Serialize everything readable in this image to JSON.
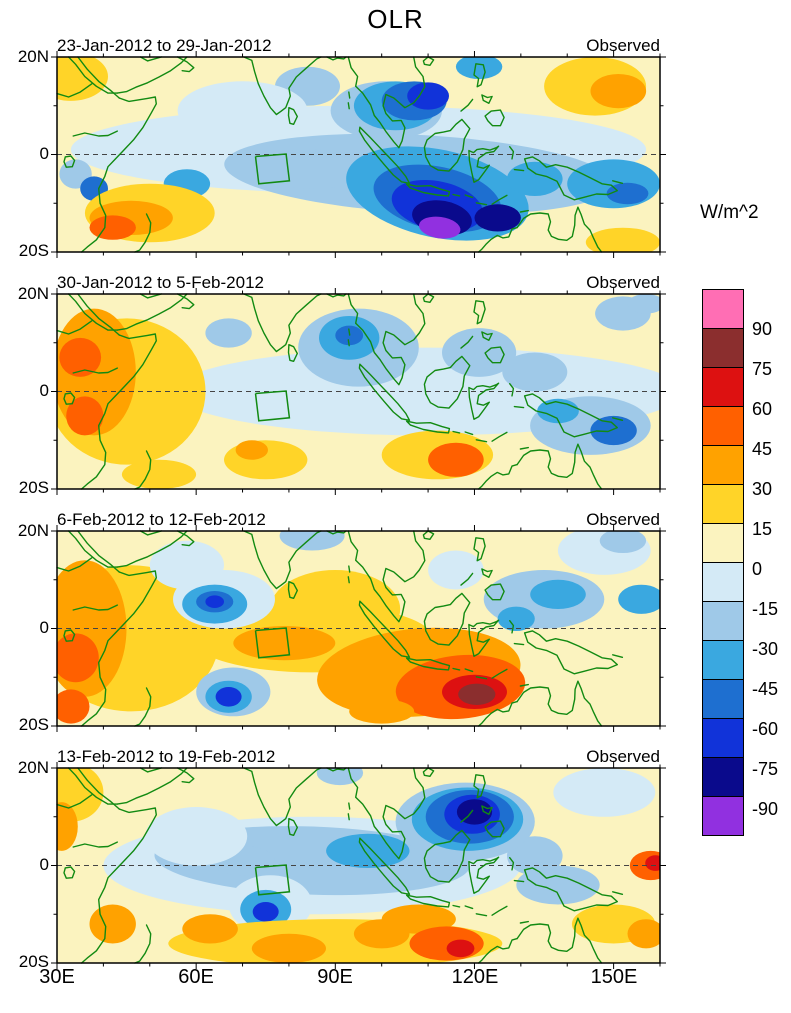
{
  "title": "OLR",
  "colorbar": {
    "label": "W/m^2",
    "tick_labels": [
      "90",
      "75",
      "60",
      "45",
      "30",
      "15",
      "0",
      "-15",
      "-30",
      "-45",
      "-60",
      "-75",
      "-90"
    ],
    "cell_colors_top_to_bottom": [
      "#FF6EB4",
      "#8B2E2E",
      "#DD1111",
      "#FF6000",
      "#FFA200",
      "#FFD428",
      "#FBF3BF",
      "#D4EAF6",
      "#9FC9E8",
      "#3AA8E0",
      "#1E6FD0",
      "#1133D9",
      "#0A0A8C",
      "#9130E0"
    ]
  },
  "xaxis": {
    "tick_labels": [
      "30E",
      "60E",
      "90E",
      "120E",
      "150E"
    ]
  },
  "yaxis": {
    "tick_labels": [
      "20N",
      "0",
      "20S"
    ]
  },
  "panels": [
    {
      "title": "23-Jan-2012 to 29-Jan-2012",
      "tag": "Observed"
    },
    {
      "title": "30-Jan-2012 to 5-Feb-2012",
      "tag": "Observed"
    },
    {
      "title": "6-Feb-2012 to 12-Feb-2012",
      "tag": "Observed"
    },
    {
      "title": "13-Feb-2012 to 19-Feb-2012",
      "tag": "Observed"
    }
  ],
  "chart_data": {
    "type": "heatmap",
    "subtype": "filled_contour_anomaly_maps",
    "units": "W/m^2",
    "lon_range": [
      30,
      160
    ],
    "lat_range": [
      -20,
      20
    ],
    "contour_levels": [
      -90,
      -75,
      -60,
      -45,
      -30,
      -15,
      0,
      15,
      30,
      45,
      60,
      75,
      90
    ],
    "background_band_value": 7,
    "feature_format": "[lon_deg_E, lat_deg_N, rx_deg, ry_deg, anomaly_value_W_m2, rot_deg_optional]",
    "region_box_lonlat": [
      [
        72.8,
        -0.4
      ],
      [
        79.4,
        0.1
      ],
      [
        80.1,
        -5.4
      ],
      [
        73.5,
        -6
      ],
      [
        72.8,
        -0.4
      ]
    ],
    "panels": [
      {
        "title": "23-Jan-2012 to 29-Jan-2012",
        "source": "Observed",
        "features": [
          [
            95,
            1,
            62,
            9,
            -10
          ],
          [
            84,
            14,
            7,
            4,
            -20
          ],
          [
            70,
            9,
            14,
            6,
            -10
          ],
          [
            108,
            -4,
            42,
            8,
            -20,
            3
          ],
          [
            85,
            -3,
            13,
            4,
            -25
          ],
          [
            58,
            -6,
            5,
            3,
            -35
          ],
          [
            34,
            -4,
            3.5,
            3,
            -30
          ],
          [
            38,
            -7,
            3,
            2.5,
            -50
          ],
          [
            101,
            9,
            12,
            6,
            -20
          ],
          [
            103,
            10,
            9,
            5,
            -35
          ],
          [
            107,
            11,
            7,
            4,
            -55
          ],
          [
            110,
            12,
            4.5,
            2.8,
            -70
          ],
          [
            121,
            18,
            5,
            2.5,
            -35
          ],
          [
            112,
            -8,
            20,
            9,
            -35,
            12
          ],
          [
            112,
            -9,
            14,
            6.5,
            -50,
            12
          ],
          [
            112,
            -10.5,
            10,
            5,
            -70,
            12
          ],
          [
            113,
            -13,
            6.5,
            3.5,
            -85,
            10
          ],
          [
            112.5,
            -15,
            4.5,
            2.2,
            -95,
            8
          ],
          [
            125,
            -13,
            5,
            2.8,
            -80
          ],
          [
            133,
            -5,
            6,
            3.5,
            -45
          ],
          [
            150,
            -6,
            10,
            5,
            -35
          ],
          [
            153,
            -8,
            4.5,
            2.2,
            -60
          ],
          [
            33,
            16,
            8,
            5,
            25
          ],
          [
            50,
            -12,
            14,
            6,
            20
          ],
          [
            46,
            -13,
            9,
            3.5,
            35
          ],
          [
            42,
            -15,
            5,
            2.5,
            50
          ],
          [
            146,
            14,
            11,
            6,
            25
          ],
          [
            151,
            13,
            6,
            3.5,
            40
          ],
          [
            152,
            -18,
            8,
            3,
            20
          ]
        ]
      },
      {
        "title": "30-Jan-2012 to 5-Feb-2012",
        "source": "Observed",
        "features": [
          [
            110,
            0,
            55,
            9,
            -10
          ],
          [
            95,
            9,
            13,
            8,
            -25
          ],
          [
            93,
            11,
            6.5,
            4.5,
            -45
          ],
          [
            93,
            11.5,
            3,
            2,
            -55
          ],
          [
            67,
            12,
            5,
            3,
            -20
          ],
          [
            121,
            8,
            8,
            5,
            -25
          ],
          [
            133,
            4,
            7,
            4,
            -20
          ],
          [
            145,
            -7,
            13,
            6,
            -30
          ],
          [
            150,
            -8,
            5,
            3,
            -55
          ],
          [
            138,
            -4,
            4.5,
            2.5,
            -45
          ],
          [
            152,
            16,
            6,
            3.5,
            -25
          ],
          [
            157,
            18,
            4,
            2,
            -20
          ],
          [
            45,
            0,
            17,
            15,
            20
          ],
          [
            38,
            4,
            9,
            13,
            35
          ],
          [
            35,
            7,
            4.5,
            4,
            50
          ],
          [
            36,
            -5,
            4,
            4,
            50
          ],
          [
            52,
            -17,
            8,
            3,
            20
          ],
          [
            112,
            -13,
            12,
            5,
            25
          ],
          [
            116,
            -14,
            6,
            3.5,
            45
          ],
          [
            75,
            -14,
            9,
            4,
            20
          ],
          [
            72,
            -12,
            3.5,
            2,
            35
          ]
        ]
      },
      {
        "title": "6-Feb-2012 to 12-Feb-2012",
        "source": "Observed",
        "features": [
          [
            46,
            -2,
            19,
            15,
            20
          ],
          [
            36,
            0,
            9,
            14,
            35
          ],
          [
            34,
            -6,
            5,
            5,
            50
          ],
          [
            33,
            -16,
            4,
            3.5,
            55
          ],
          [
            90,
            4,
            14,
            8,
            20
          ],
          [
            85,
            -2,
            26,
            7,
            25
          ],
          [
            79,
            -3,
            11,
            3.5,
            40
          ],
          [
            108,
            -9,
            22,
            9,
            30,
            -5
          ],
          [
            117,
            -12,
            14,
            6.5,
            45,
            -5
          ],
          [
            120,
            -13,
            7,
            3.5,
            65
          ],
          [
            120.5,
            -13.5,
            4,
            2.2,
            80
          ],
          [
            100,
            -17,
            7,
            2.5,
            40
          ],
          [
            58,
            13,
            8,
            5,
            -10
          ],
          [
            66,
            6,
            11,
            6,
            -15
          ],
          [
            64,
            5,
            7,
            4,
            -35
          ],
          [
            64,
            5.5,
            4,
            2.2,
            -55
          ],
          [
            64,
            5.5,
            2,
            1.3,
            -65
          ],
          [
            85,
            19,
            7,
            3,
            -30
          ],
          [
            68,
            -13,
            8,
            5,
            -20
          ],
          [
            67,
            -14,
            5,
            3.3,
            -45
          ],
          [
            67,
            -14,
            2.8,
            2,
            -65
          ],
          [
            135,
            6,
            13,
            6,
            -25
          ],
          [
            138,
            7,
            6,
            3,
            -45
          ],
          [
            148,
            16,
            10,
            5,
            -15
          ],
          [
            152,
            18,
            5,
            2.5,
            -30
          ],
          [
            156,
            6,
            5,
            3,
            -35
          ],
          [
            129,
            2,
            4,
            2.5,
            -40
          ],
          [
            116,
            12,
            6,
            4,
            -15
          ]
        ]
      },
      {
        "title": "13-Feb-2012 to 19-Feb-2012",
        "source": "Observed",
        "features": [
          [
            85,
            0,
            45,
            10,
            -8
          ],
          [
            85,
            1,
            34,
            7,
            -20,
            2
          ],
          [
            97,
            3,
            9,
            3.5,
            -35
          ],
          [
            70,
            1,
            7,
            3,
            -30
          ],
          [
            60,
            6,
            11,
            6,
            -10
          ],
          [
            91,
            19,
            5,
            2.5,
            -30
          ],
          [
            148,
            15,
            11,
            5,
            -10
          ],
          [
            138,
            -4,
            9,
            4,
            -20
          ],
          [
            133,
            2,
            6,
            4,
            -25
          ],
          [
            118,
            9,
            15,
            8,
            -30
          ],
          [
            118.5,
            9.5,
            12,
            6.5,
            -40
          ],
          [
            119,
            10,
            9.5,
            5.5,
            -50
          ],
          [
            119.5,
            10.5,
            6,
            4,
            -70
          ],
          [
            120,
            11,
            3.8,
            2.6,
            -85
          ],
          [
            76,
            -8,
            9,
            6,
            -15
          ],
          [
            75,
            -9,
            5.5,
            4,
            -40
          ],
          [
            75,
            -9.5,
            2.8,
            2,
            -65
          ],
          [
            33,
            15,
            7,
            6,
            20
          ],
          [
            31,
            8,
            3.5,
            5,
            40
          ],
          [
            90,
            -16,
            36,
            5,
            20
          ],
          [
            63,
            -13,
            6,
            3,
            40
          ],
          [
            80,
            -17,
            8,
            3,
            40
          ],
          [
            100,
            -14,
            6,
            3,
            35
          ],
          [
            108,
            -11,
            8,
            3,
            30
          ],
          [
            114,
            -16,
            8,
            3.5,
            45
          ],
          [
            117,
            -17,
            3,
            1.8,
            60
          ],
          [
            42,
            -12,
            5,
            4,
            35
          ],
          [
            150,
            -12,
            9,
            4,
            25
          ],
          [
            157,
            -14,
            4,
            3,
            40
          ],
          [
            158,
            0,
            4.5,
            3,
            45
          ],
          [
            159,
            0.5,
            2.2,
            1.6,
            60
          ]
        ]
      }
    ]
  }
}
